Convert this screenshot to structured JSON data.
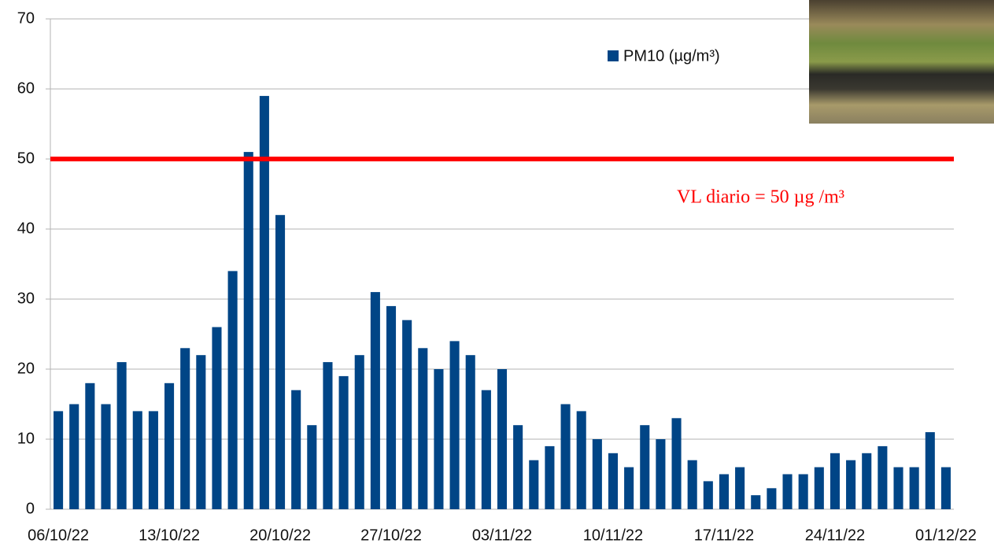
{
  "chart_data": {
    "type": "bar",
    "categories": [
      "06/10/22",
      null,
      null,
      null,
      null,
      null,
      null,
      "13/10/22",
      null,
      null,
      null,
      null,
      null,
      null,
      "20/10/22",
      null,
      null,
      null,
      null,
      null,
      null,
      "27/10/22",
      null,
      null,
      null,
      null,
      null,
      null,
      "03/11/22",
      null,
      null,
      null,
      null,
      null,
      null,
      "10/11/22",
      null,
      null,
      null,
      null,
      null,
      null,
      "17/11/22",
      null,
      null,
      null,
      null,
      null,
      null,
      "24/11/22",
      null,
      null,
      null,
      null,
      null,
      null,
      "01/12/22"
    ],
    "series": [
      {
        "name": "PM10 (µg/m³)",
        "color": "#004586",
        "values": [
          14,
          15,
          18,
          15,
          21,
          14,
          14,
          18,
          23,
          22,
          26,
          34,
          51,
          59,
          42,
          17,
          12,
          21,
          19,
          22,
          31,
          29,
          27,
          23,
          20,
          24,
          22,
          17,
          20,
          12,
          7,
          9,
          15,
          14,
          10,
          8,
          6,
          12,
          10,
          13,
          7,
          4,
          5,
          6,
          2,
          3,
          5,
          5,
          6,
          8,
          7,
          8,
          9,
          6,
          6,
          11,
          6
        ]
      }
    ],
    "ylim": [
      0,
      70
    ],
    "yticks": [
      0,
      10,
      20,
      30,
      40,
      50,
      60,
      70
    ],
    "grid": true,
    "reference_line": {
      "value": 50,
      "label": "VL diario = 50 µg /m³",
      "color": "#ff0000"
    }
  }
}
